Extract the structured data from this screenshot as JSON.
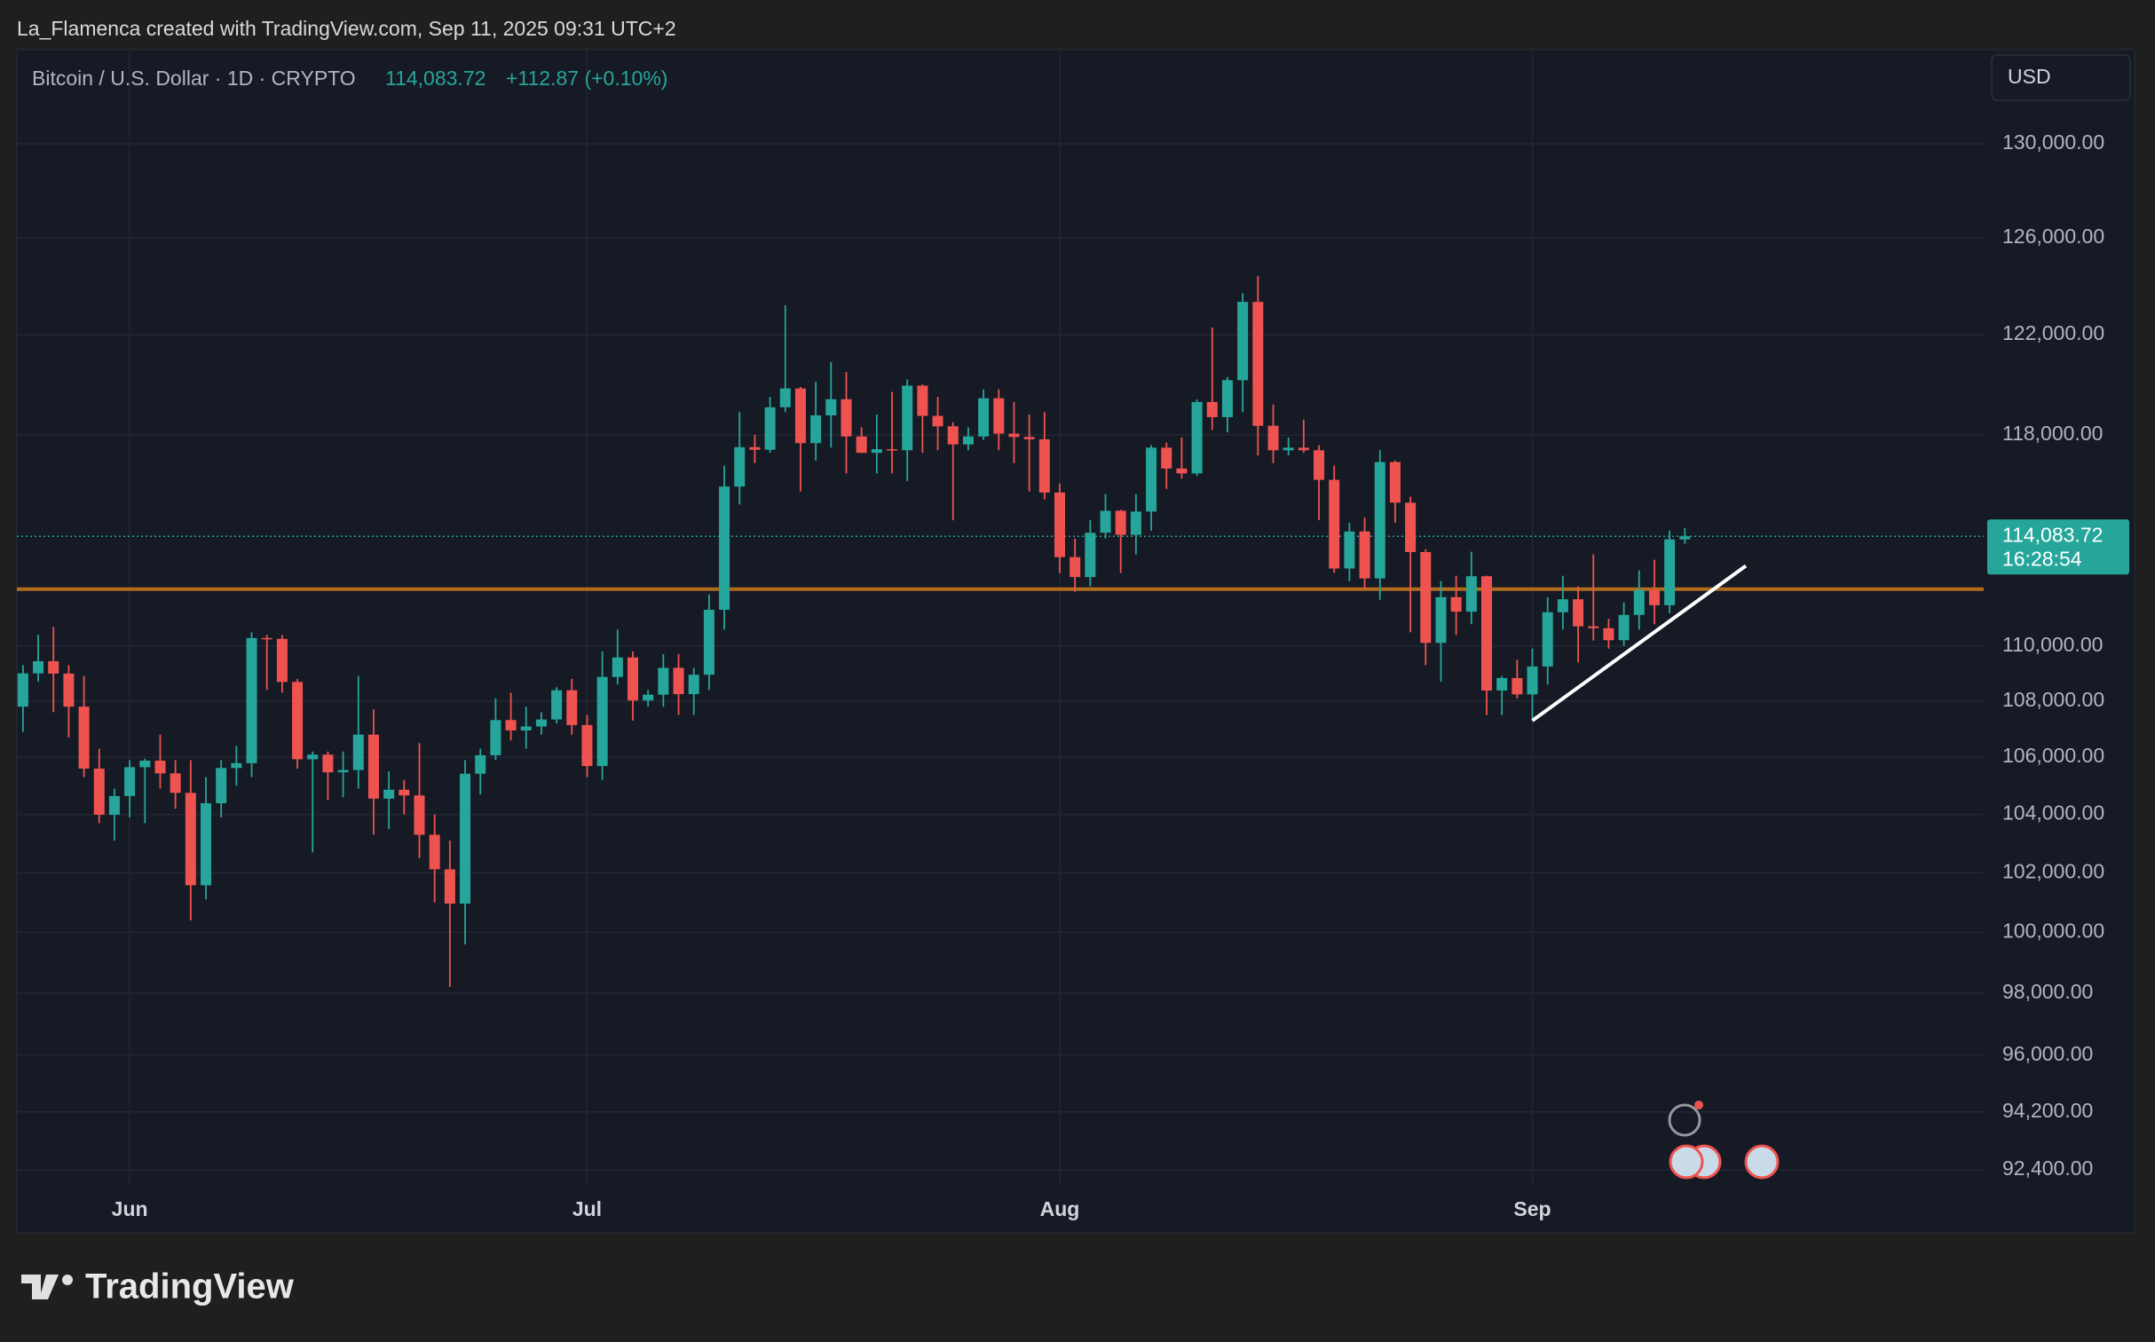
{
  "header": {
    "credit": "La_Flamenca created with TradingView.com, Sep 11, 2025 09:31 UTC+2",
    "brand": "TradingView",
    "currency": "USD"
  },
  "chart_data": {
    "type": "candlestick",
    "title": "Bitcoin / U.S. Dollar · 1D · CRYPTO",
    "last_label": "114,083.72",
    "change_label": "+112.87 (+0.10%)",
    "price_tag": "114,083.72",
    "countdown": "16:28:54",
    "up_color": "#26a69a",
    "down_color": "#ef5350",
    "log_scale": true,
    "grid": true,
    "categories": [
      null,
      null,
      null,
      null,
      null,
      null,
      null,
      "Jun",
      null,
      null,
      null,
      null,
      null,
      null,
      null,
      null,
      null,
      null,
      null,
      null,
      null,
      null,
      null,
      null,
      null,
      null,
      null,
      null,
      null,
      null,
      null,
      null,
      null,
      null,
      null,
      null,
      null,
      "Jul",
      null,
      null,
      null,
      null,
      null,
      null,
      null,
      null,
      null,
      null,
      null,
      null,
      null,
      null,
      null,
      null,
      null,
      null,
      null,
      null,
      null,
      null,
      null,
      null,
      null,
      null,
      null,
      null,
      null,
      null,
      "Aug",
      null,
      null,
      null,
      null,
      null,
      null,
      null,
      null,
      null,
      null,
      null,
      null,
      null,
      null,
      null,
      null,
      null,
      null,
      null,
      null,
      null,
      null,
      null,
      null,
      null,
      null,
      null,
      null,
      null,
      null,
      "Sep",
      null,
      null,
      null,
      null,
      null,
      null,
      null,
      null,
      null,
      null
    ],
    "open": [
      107800,
      109000,
      109440,
      108990,
      107800,
      105600,
      103990,
      104640,
      105650,
      105880,
      105430,
      104750,
      101580,
      104390,
      105620,
      105790,
      110290,
      110260,
      108690,
      105930,
      106090,
      105470,
      105550,
      106800,
      104550,
      104860,
      104660,
      103300,
      102120,
      100960,
      105420,
      106070,
      107320,
      106950,
      107090,
      107340,
      108390,
      107140,
      105690,
      108870,
      109580,
      108020,
      108230,
      109200,
      108250,
      108950,
      111330,
      115990,
      117520,
      117420,
      119090,
      119840,
      117680,
      118770,
      119410,
      117940,
      117300,
      117440,
      117400,
      119950,
      118750,
      118340,
      117630,
      117940,
      119450,
      118050,
      117920,
      117830,
      115760,
      113300,
      112550,
      114220,
      115060,
      114140,
      115030,
      117500,
      116690,
      116500,
      119300,
      118700,
      120170,
      123340,
      118360,
      117400,
      117500,
      117400,
      116250,
      112870,
      114270,
      112500,
      116940,
      115370,
      113490,
      110110,
      111800,
      111260,
      112580,
      108380,
      108830,
      108240,
      109250,
      111240,
      111720,
      110720,
      110650,
      110210,
      111140,
      112060,
      111500,
      113970
    ],
    "high": [
      109300,
      110400,
      110700,
      109300,
      108900,
      106300,
      104900,
      105900,
      105950,
      106800,
      105900,
      105900,
      105300,
      105900,
      106400,
      110500,
      110400,
      110400,
      108800,
      106200,
      106200,
      106200,
      108900,
      107700,
      105500,
      105200,
      106500,
      104000,
      103100,
      105900,
      106300,
      108100,
      108300,
      107800,
      107600,
      108500,
      108800,
      107500,
      109800,
      110600,
      109800,
      108400,
      109700,
      109700,
      109200,
      111900,
      116800,
      118900,
      118000,
      119500,
      123200,
      119900,
      120100,
      120900,
      120500,
      118300,
      118800,
      119700,
      120200,
      120000,
      119500,
      118500,
      118300,
      119800,
      119800,
      119300,
      118800,
      118900,
      116100,
      114000,
      114700,
      115700,
      115100,
      115700,
      117600,
      117700,
      117900,
      119400,
      122300,
      120300,
      123700,
      124400,
      119200,
      117900,
      118600,
      117600,
      116800,
      114600,
      114800,
      117400,
      117000,
      115600,
      113600,
      112400,
      112600,
      113500,
      112600,
      108900,
      109500,
      109900,
      111800,
      112600,
      112200,
      113400,
      111000,
      111600,
      112800,
      113200,
      114300,
      114400
    ],
    "low": [
      106900,
      108700,
      107600,
      106700,
      105300,
      103700,
      103100,
      103900,
      103700,
      104900,
      104200,
      100400,
      101100,
      103900,
      105000,
      105300,
      108400,
      108300,
      105600,
      102700,
      104500,
      104600,
      104900,
      103300,
      103500,
      104000,
      102500,
      101000,
      98200,
      99600,
      104700,
      105900,
      106600,
      106300,
      106800,
      107200,
      106800,
      105300,
      105200,
      108600,
      107300,
      107800,
      107800,
      107500,
      107500,
      108400,
      110600,
      115300,
      116900,
      117300,
      118900,
      115800,
      117000,
      117500,
      116500,
      117300,
      116500,
      116500,
      116200,
      117300,
      117400,
      114700,
      117400,
      117800,
      117400,
      116900,
      115800,
      115500,
      112700,
      112000,
      112200,
      114000,
      112700,
      113400,
      114300,
      115900,
      116300,
      116400,
      118200,
      118100,
      118900,
      117200,
      116900,
      117200,
      117300,
      114700,
      112700,
      112400,
      112100,
      111700,
      114600,
      110500,
      109300,
      108700,
      110400,
      110800,
      107500,
      107500,
      108100,
      107300,
      108600,
      110600,
      109400,
      110200,
      109900,
      110000,
      110600,
      110800,
      111200,
      113800
    ],
    "close": [
      109000,
      109440,
      108990,
      107800,
      105600,
      103990,
      104640,
      105650,
      105880,
      105430,
      104750,
      101580,
      104390,
      105620,
      105790,
      110290,
      110260,
      108690,
      105930,
      106090,
      105470,
      105550,
      106800,
      104550,
      104860,
      104660,
      103300,
      102120,
      100960,
      105420,
      106070,
      107320,
      106950,
      107090,
      107340,
      108390,
      107140,
      105690,
      108870,
      109580,
      108020,
      108230,
      109200,
      108250,
      108950,
      111330,
      115990,
      117520,
      117420,
      119090,
      119840,
      117680,
      118770,
      119410,
      117940,
      117300,
      117440,
      117400,
      119950,
      118750,
      118340,
      117630,
      117940,
      119450,
      118050,
      117920,
      117830,
      115760,
      113300,
      112550,
      114220,
      115060,
      114140,
      115030,
      117500,
      116690,
      116500,
      119300,
      118700,
      120170,
      123340,
      118360,
      117400,
      117500,
      117400,
      116250,
      112870,
      114270,
      112500,
      116940,
      115370,
      113490,
      110110,
      111800,
      111260,
      112580,
      108380,
      108830,
      108240,
      109250,
      111240,
      111720,
      110720,
      110650,
      110210,
      111140,
      112060,
      111500,
      113970,
      114083.72
    ],
    "ylim": [
      91940,
      133900
    ],
    "yticks": [
      {
        "value": 130000,
        "label": "130,000.00"
      },
      {
        "value": 126000,
        "label": "126,000.00"
      },
      {
        "value": 122000,
        "label": "122,000.00"
      },
      {
        "value": 118000,
        "label": "118,000.00"
      },
      {
        "value": 110000,
        "label": "110,000.00"
      },
      {
        "value": 108000,
        "label": "108,000.00"
      },
      {
        "value": 106000,
        "label": "106,000.00"
      },
      {
        "value": 104000,
        "label": "104,000.00"
      },
      {
        "value": 102000,
        "label": "102,000.00"
      },
      {
        "value": 100000,
        "label": "100,000.00"
      },
      {
        "value": 98000,
        "label": "98,000.00"
      },
      {
        "value": 96000,
        "label": "96,000.00"
      },
      {
        "value": 94200,
        "label": "94,200.00"
      },
      {
        "value": 92400,
        "label": "92,400.00"
      }
    ],
    "hline": {
      "value": 112100,
      "color": "#b26c1e"
    },
    "trendline": {
      "x": [
        99,
        113
      ],
      "y": [
        107300,
        112970
      ],
      "color": "#ffffff"
    }
  }
}
